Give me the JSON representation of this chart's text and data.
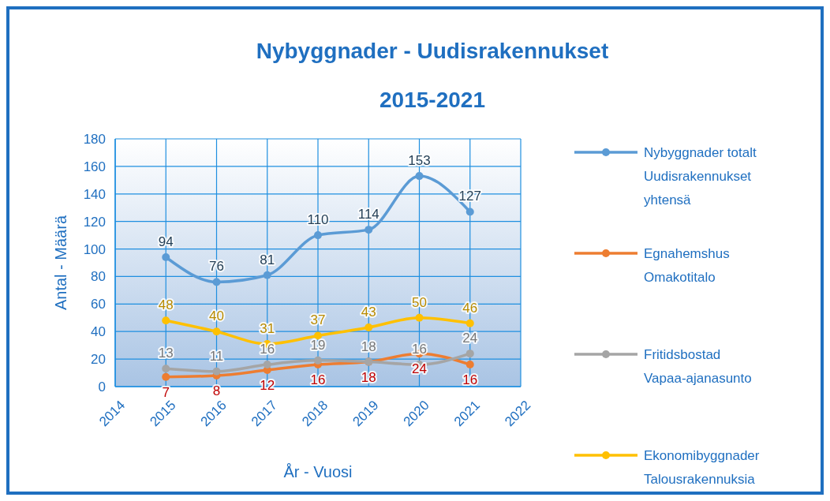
{
  "chart_data": {
    "type": "line",
    "title": "Nybyggnader - Uudisrakennukset",
    "subtitle": "2015-2021",
    "xlabel": "År - Vuosi",
    "ylabel": "Antal - Määrä",
    "x": [
      2015,
      2016,
      2017,
      2018,
      2019,
      2020,
      2021
    ],
    "xlim": [
      2014,
      2022
    ],
    "xticks": [
      2014,
      2015,
      2016,
      2017,
      2018,
      2019,
      2020,
      2021,
      2022
    ],
    "ylim": [
      0,
      180
    ],
    "yticks": [
      0,
      20,
      40,
      60,
      80,
      100,
      120,
      140,
      160,
      180
    ],
    "grid": true,
    "legend": "right",
    "marker": "circle",
    "line_style": "solid",
    "data_labels": true,
    "series": [
      {
        "name": "Nybyggnader totalt Uudisrakennukset yhtensä",
        "color": "#5b9bd5",
        "values": [
          94,
          76,
          81,
          110,
          114,
          153,
          127
        ]
      },
      {
        "name": "Egnahemshus Omakotitalo",
        "color": "#ed7d31",
        "values": [
          7,
          8,
          12,
          16,
          18,
          24,
          16
        ]
      },
      {
        "name": "Fritidsbostad Vapaa-ajanasunto",
        "color": "#a5a5a5",
        "values": [
          13,
          11,
          16,
          19,
          18,
          16,
          24
        ]
      },
      {
        "name": "Ekonomibyggnader Talousrakennuksia",
        "color": "#ffc000",
        "values": [
          48,
          40,
          31,
          37,
          43,
          50,
          46
        ]
      }
    ]
  }
}
